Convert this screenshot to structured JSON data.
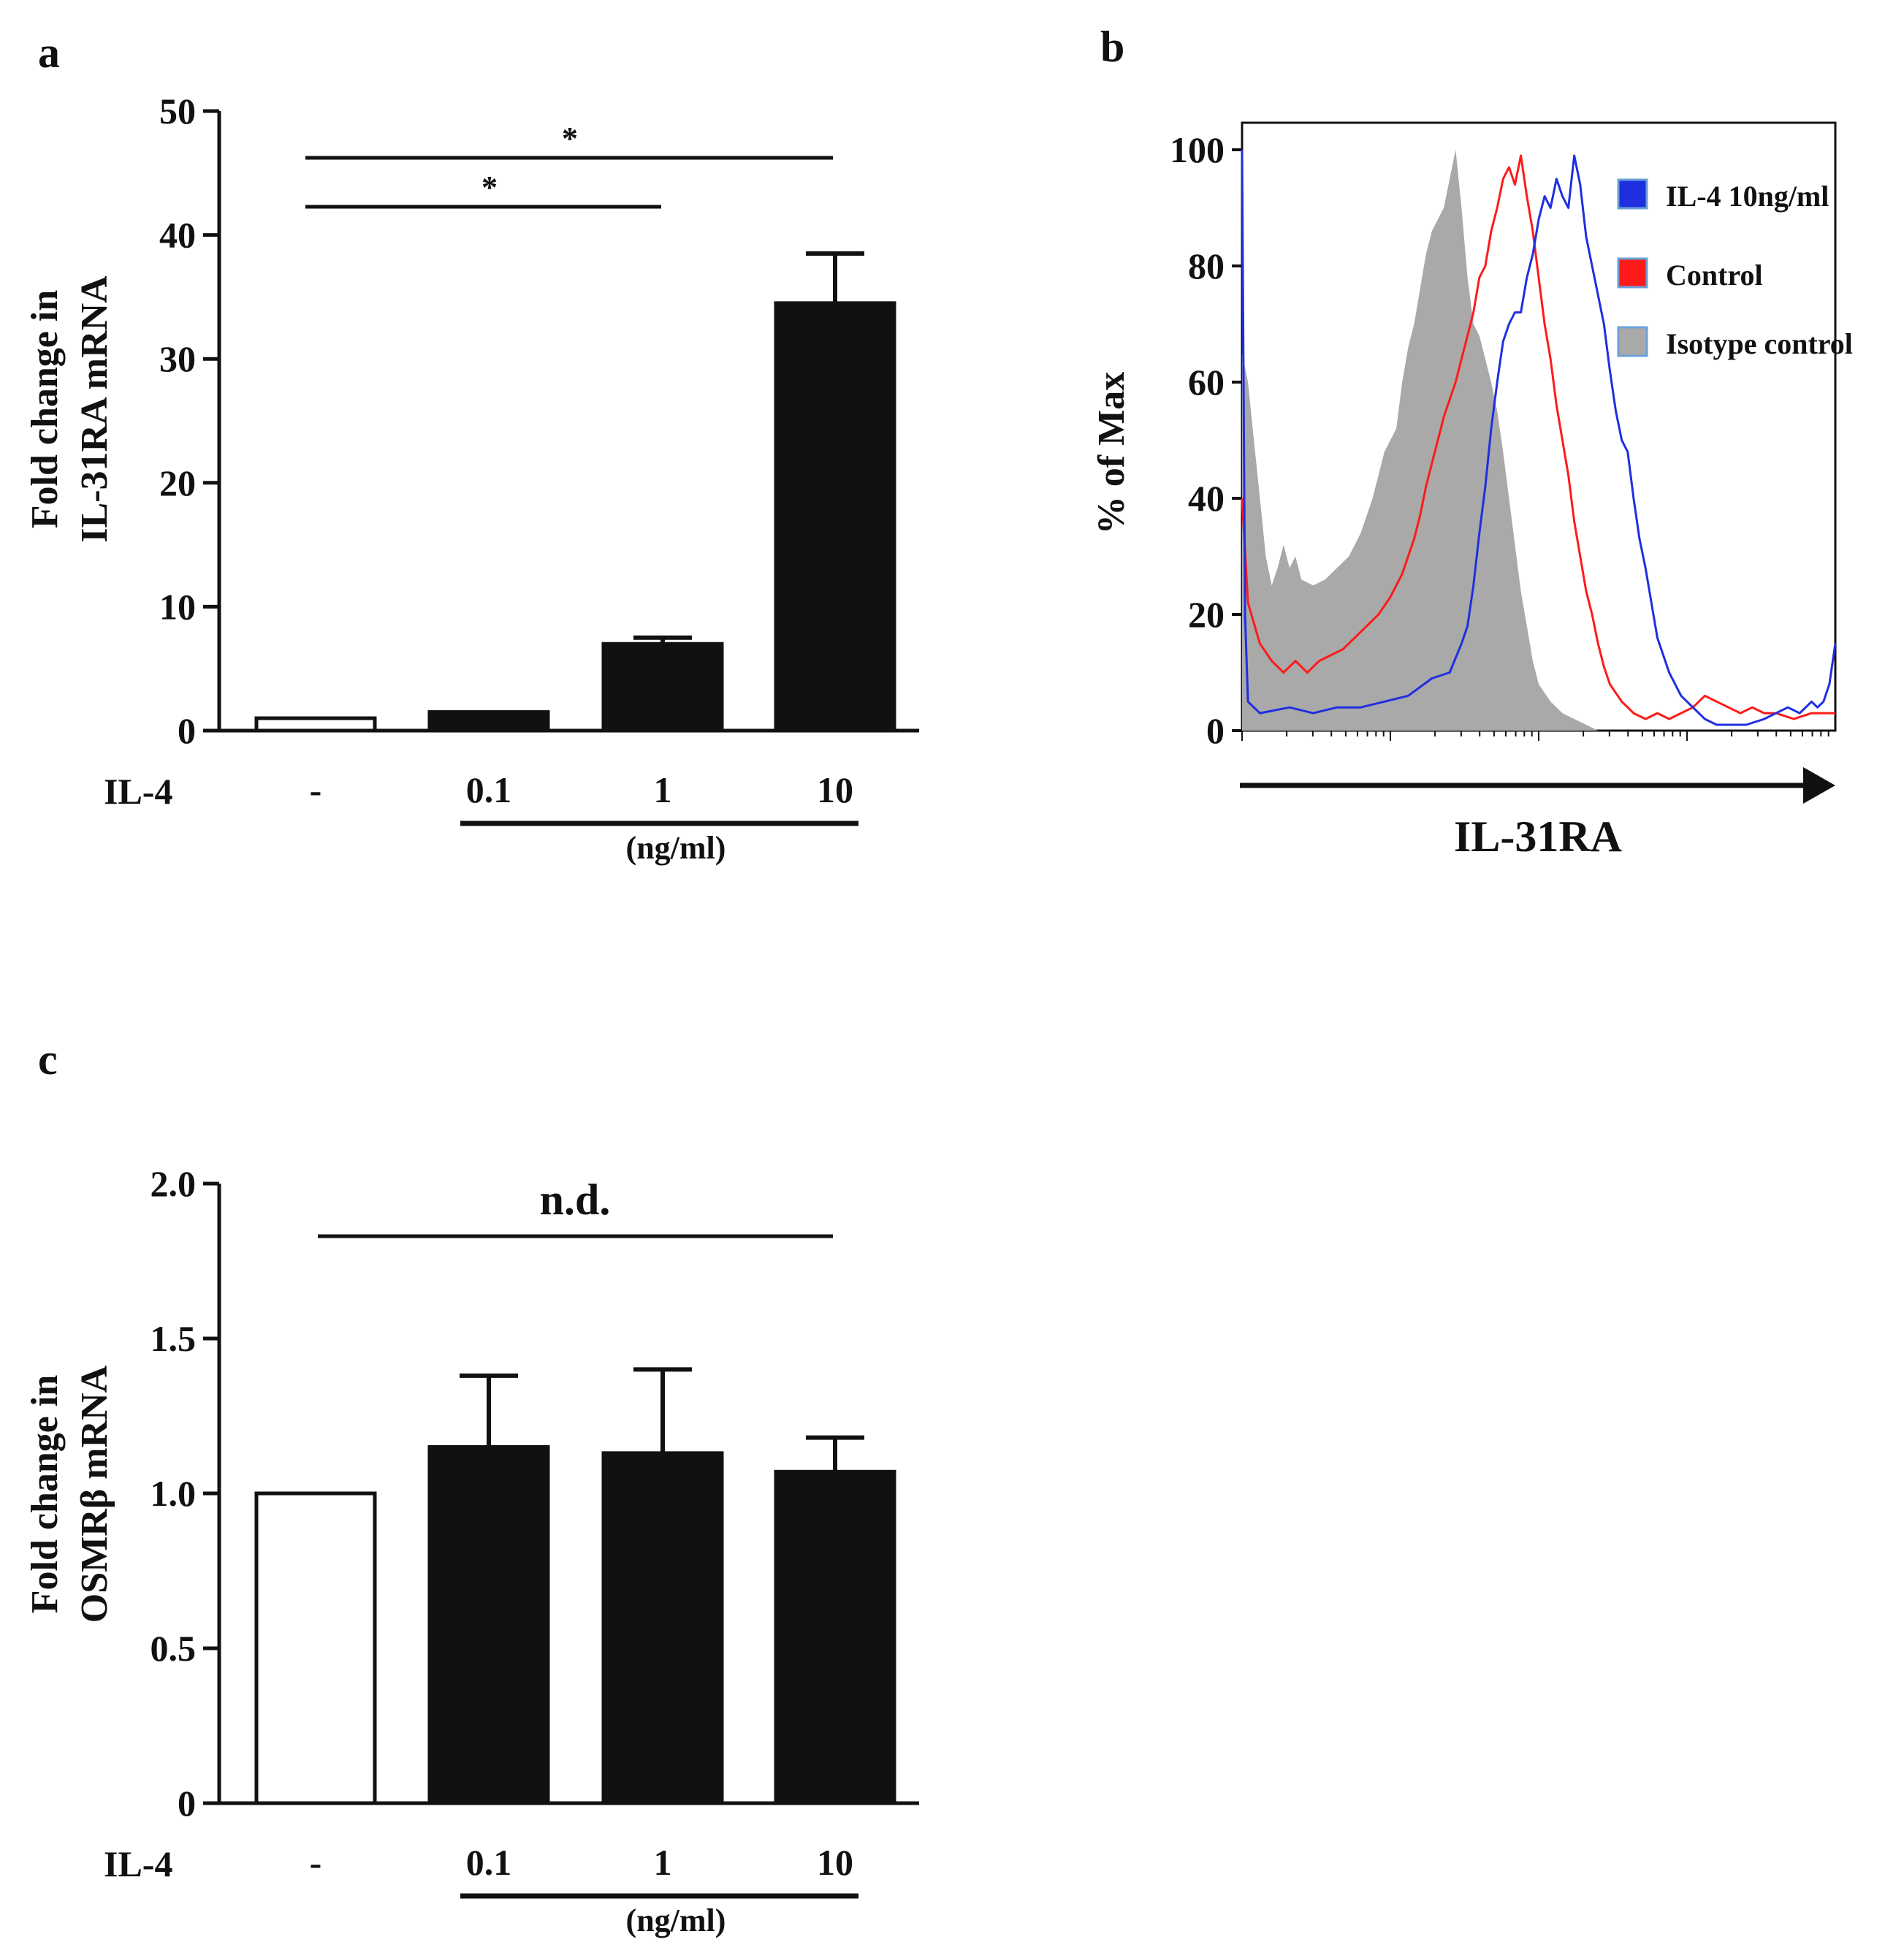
{
  "panels": {
    "a": {
      "label": "a"
    },
    "b": {
      "label": "b"
    },
    "c": {
      "label": "c"
    }
  },
  "colors": {
    "bar_fill": "#111111",
    "control_fill": "#ffffff",
    "il4_line": "#1f2fe0",
    "control_line": "#ff1a1a",
    "isotype_fill": "#a9a9a9",
    "axis": "#111111"
  },
  "chart_data": [
    {
      "id": "a",
      "type": "bar",
      "ylabel_lines": [
        "Fold change in",
        "IL-31RA mRNA"
      ],
      "x_row_label": "IL-4",
      "categories": [
        "-",
        "0.1",
        "1",
        "10"
      ],
      "values": [
        1,
        1.5,
        7,
        34.5
      ],
      "errors": [
        0,
        0,
        0.5,
        4
      ],
      "unit_label": "(ng/ml)",
      "ylim": [
        0,
        50
      ],
      "yticks": [
        "0",
        "10",
        "20",
        "30",
        "40",
        "50"
      ],
      "significance": [
        {
          "from": 0,
          "to": 3,
          "label": "*"
        },
        {
          "from": 0,
          "to": 2,
          "label": "*"
        }
      ]
    },
    {
      "id": "b",
      "type": "line",
      "xlabel": "IL-31RA",
      "ylabel": "% of Max",
      "ylim": [
        0,
        100
      ],
      "yticks": [
        "0",
        "20",
        "40",
        "60",
        "80",
        "100"
      ],
      "x_range": [
        0,
        100
      ],
      "legend": [
        "IL-4 10ng/ml",
        "Control",
        "Isotype control"
      ],
      "series": [
        {
          "name": "IL-4 10ng/ml",
          "points": [
            [
              0,
              100
            ],
            [
              0.5,
              20
            ],
            [
              1,
              5
            ],
            [
              3,
              3
            ],
            [
              8,
              4
            ],
            [
              12,
              3
            ],
            [
              16,
              4
            ],
            [
              20,
              4
            ],
            [
              24,
              5
            ],
            [
              28,
              6
            ],
            [
              32,
              9
            ],
            [
              35,
              10
            ],
            [
              37,
              15
            ],
            [
              38,
              18
            ],
            [
              39,
              25
            ],
            [
              40,
              34
            ],
            [
              41,
              42
            ],
            [
              42,
              52
            ],
            [
              43,
              60
            ],
            [
              44,
              67
            ],
            [
              45,
              70
            ],
            [
              46,
              72
            ],
            [
              47,
              72
            ],
            [
              48,
              78
            ],
            [
              49,
              82
            ],
            [
              50,
              88
            ],
            [
              51,
              92
            ],
            [
              52,
              90
            ],
            [
              53,
              95
            ],
            [
              54,
              92
            ],
            [
              55,
              90
            ],
            [
              56,
              99
            ],
            [
              57,
              94
            ],
            [
              58,
              85
            ],
            [
              59,
              80
            ],
            [
              60,
              75
            ],
            [
              61,
              70
            ],
            [
              62,
              62
            ],
            [
              63,
              55
            ],
            [
              64,
              50
            ],
            [
              65,
              48
            ],
            [
              66,
              40
            ],
            [
              67,
              33
            ],
            [
              68,
              28
            ],
            [
              69,
              22
            ],
            [
              70,
              16
            ],
            [
              72,
              10
            ],
            [
              74,
              6
            ],
            [
              76,
              4
            ],
            [
              78,
              2
            ],
            [
              80,
              1
            ],
            [
              85,
              1
            ],
            [
              88,
              2
            ],
            [
              90,
              3
            ],
            [
              92,
              4
            ],
            [
              94,
              3
            ],
            [
              96,
              5
            ],
            [
              97,
              4
            ],
            [
              98,
              5
            ],
            [
              99,
              8
            ],
            [
              100,
              15
            ]
          ]
        },
        {
          "name": "Control",
          "points": [
            [
              0,
              40
            ],
            [
              1,
              22
            ],
            [
              3,
              15
            ],
            [
              5,
              12
            ],
            [
              7,
              10
            ],
            [
              9,
              12
            ],
            [
              11,
              10
            ],
            [
              13,
              12
            ],
            [
              15,
              13
            ],
            [
              17,
              14
            ],
            [
              19,
              16
            ],
            [
              21,
              18
            ],
            [
              23,
              20
            ],
            [
              25,
              23
            ],
            [
              27,
              27
            ],
            [
              29,
              33
            ],
            [
              30,
              37
            ],
            [
              31,
              42
            ],
            [
              32,
              46
            ],
            [
              33,
              50
            ],
            [
              34,
              54
            ],
            [
              35,
              57
            ],
            [
              36,
              60
            ],
            [
              37,
              64
            ],
            [
              38,
              68
            ],
            [
              39,
              72
            ],
            [
              40,
              78
            ],
            [
              41,
              80
            ],
            [
              42,
              86
            ],
            [
              43,
              90
            ],
            [
              44,
              95
            ],
            [
              45,
              97
            ],
            [
              46,
              94
            ],
            [
              47,
              99
            ],
            [
              48,
              92
            ],
            [
              49,
              86
            ],
            [
              50,
              78
            ],
            [
              51,
              70
            ],
            [
              52,
              64
            ],
            [
              53,
              56
            ],
            [
              54,
              50
            ],
            [
              55,
              44
            ],
            [
              56,
              36
            ],
            [
              57,
              30
            ],
            [
              58,
              24
            ],
            [
              59,
              20
            ],
            [
              60,
              15
            ],
            [
              61,
              11
            ],
            [
              62,
              8
            ],
            [
              64,
              5
            ],
            [
              66,
              3
            ],
            [
              68,
              2
            ],
            [
              70,
              3
            ],
            [
              72,
              2
            ],
            [
              74,
              3
            ],
            [
              76,
              4
            ],
            [
              78,
              6
            ],
            [
              80,
              5
            ],
            [
              82,
              4
            ],
            [
              84,
              3
            ],
            [
              86,
              4
            ],
            [
              88,
              3
            ],
            [
              90,
              3
            ],
            [
              93,
              2
            ],
            [
              96,
              3
            ],
            [
              100,
              3
            ]
          ]
        },
        {
          "name": "Isotype control",
          "points": [
            [
              0,
              65
            ],
            [
              1,
              60
            ],
            [
              2,
              50
            ],
            [
              3,
              40
            ],
            [
              4,
              30
            ],
            [
              5,
              25
            ],
            [
              6,
              28
            ],
            [
              7,
              32
            ],
            [
              8,
              28
            ],
            [
              9,
              30
            ],
            [
              10,
              26
            ],
            [
              12,
              25
            ],
            [
              14,
              26
            ],
            [
              16,
              28
            ],
            [
              18,
              30
            ],
            [
              20,
              34
            ],
            [
              22,
              40
            ],
            [
              24,
              48
            ],
            [
              26,
              52
            ],
            [
              27,
              60
            ],
            [
              28,
              66
            ],
            [
              29,
              70
            ],
            [
              30,
              76
            ],
            [
              31,
              82
            ],
            [
              32,
              86
            ],
            [
              33,
              88
            ],
            [
              34,
              90
            ],
            [
              35,
              95
            ],
            [
              36,
              100
            ],
            [
              37,
              90
            ],
            [
              38,
              78
            ],
            [
              39,
              70
            ],
            [
              40,
              68
            ],
            [
              41,
              64
            ],
            [
              42,
              60
            ],
            [
              43,
              55
            ],
            [
              44,
              48
            ],
            [
              45,
              40
            ],
            [
              46,
              32
            ],
            [
              47,
              24
            ],
            [
              48,
              18
            ],
            [
              49,
              12
            ],
            [
              50,
              8
            ],
            [
              52,
              5
            ],
            [
              54,
              3
            ],
            [
              56,
              2
            ],
            [
              58,
              1
            ],
            [
              60,
              0
            ],
            [
              100,
              0
            ]
          ]
        }
      ]
    },
    {
      "id": "c",
      "type": "bar",
      "ylabel_lines": [
        "Fold change in",
        "OSMRβ mRNA"
      ],
      "x_row_label": "IL-4",
      "categories": [
        "-",
        "0.1",
        "1",
        "10"
      ],
      "values": [
        1.0,
        1.15,
        1.13,
        1.07
      ],
      "errors": [
        0,
        0.23,
        0.27,
        0.11
      ],
      "unit_label": "(ng/ml)",
      "ylim": [
        0,
        2.0
      ],
      "yticks": [
        "0",
        "0.5",
        "1.0",
        "1.5",
        "2.0"
      ],
      "significance": [
        {
          "from": 0,
          "to": 3,
          "label": "n.d."
        }
      ]
    }
  ]
}
